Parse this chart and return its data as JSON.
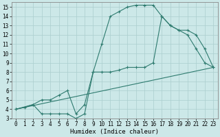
{
  "xlabel": "Humidex (Indice chaleur)",
  "bg_color": "#cce8e8",
  "line_color": "#2d7a6e",
  "grid_color": "#aacece",
  "xlim": [
    -0.5,
    23.5
  ],
  "ylim": [
    3,
    15.5
  ],
  "xticks": [
    0,
    1,
    2,
    3,
    4,
    5,
    6,
    7,
    8,
    9,
    10,
    11,
    12,
    13,
    14,
    15,
    16,
    17,
    18,
    19,
    20,
    21,
    22,
    23
  ],
  "yticks": [
    3,
    4,
    5,
    6,
    7,
    8,
    9,
    10,
    11,
    12,
    13,
    14,
    15
  ],
  "line1_x": [
    0,
    1,
    2,
    3,
    4,
    5,
    6,
    7,
    8,
    9,
    10,
    11,
    12,
    13,
    14,
    15,
    16,
    17,
    18,
    19,
    20,
    21,
    22,
    23
  ],
  "line1_y": [
    4.0,
    4.2,
    4.5,
    5.0,
    5.0,
    5.5,
    6.0,
    3.5,
    4.5,
    8.0,
    11.0,
    14.0,
    14.5,
    15.0,
    15.2,
    15.2,
    15.2,
    14.0,
    13.0,
    12.5,
    12.0,
    10.5,
    9.0,
    8.5
  ],
  "line2_x": [
    0,
    2,
    3,
    4,
    5,
    6,
    7,
    8,
    9,
    10,
    11,
    12,
    13,
    14,
    15,
    16,
    17,
    18,
    19,
    20,
    21,
    22,
    23
  ],
  "line2_y": [
    4.0,
    4.5,
    3.5,
    3.5,
    3.5,
    3.5,
    3.0,
    3.5,
    8.0,
    8.0,
    8.0,
    8.2,
    8.5,
    8.5,
    8.5,
    9.0,
    14.0,
    13.0,
    12.5,
    12.5,
    12.0,
    10.5,
    8.5
  ],
  "line3_x": [
    0,
    23
  ],
  "line3_y": [
    4.0,
    8.5
  ]
}
